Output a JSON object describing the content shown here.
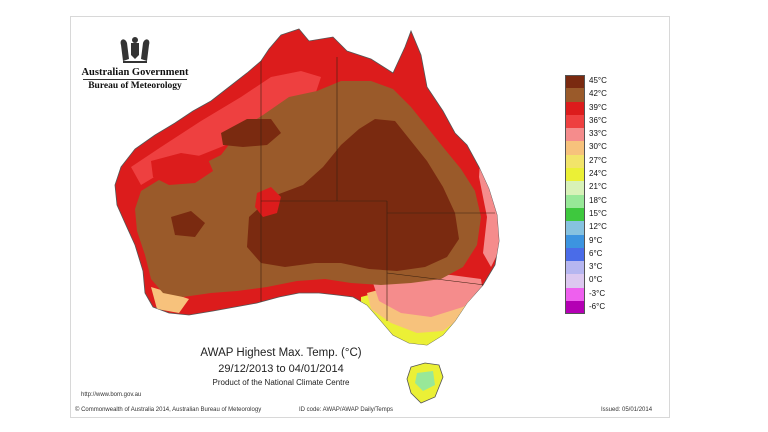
{
  "branding": {
    "government": "Australian Government",
    "bureau": "Bureau of Meteorology"
  },
  "map": {
    "title": "AWAP Highest Max. Temp. (°C)",
    "period": "29/12/2013 to 04/01/2014",
    "product": "Product of the National Climate Centre"
  },
  "legend": {
    "items": [
      {
        "label": "45°C",
        "color": "#7a2a10"
      },
      {
        "label": "42°C",
        "color": "#9a5a2a"
      },
      {
        "label": "39°C",
        "color": "#dc1c1c"
      },
      {
        "label": "36°C",
        "color": "#ee4040"
      },
      {
        "label": "33°C",
        "color": "#f58c8c"
      },
      {
        "label": "30°C",
        "color": "#f7c27c"
      },
      {
        "label": "27°C",
        "color": "#f2e46a"
      },
      {
        "label": "24°C",
        "color": "#ebf036"
      },
      {
        "label": "21°C",
        "color": "#d8f2b8"
      },
      {
        "label": "18°C",
        "color": "#98e898"
      },
      {
        "label": "15°C",
        "color": "#3ec83e"
      },
      {
        "label": "12°C",
        "color": "#86c2e0"
      },
      {
        "label": "9°C",
        "color": "#3c94e0"
      },
      {
        "label": "6°C",
        "color": "#4a6ce8"
      },
      {
        "label": "3°C",
        "color": "#b6b6f0"
      },
      {
        "label": "0°C",
        "color": "#dcc8f0"
      },
      {
        "label": "-3°C",
        "color": "#ee60ee"
      },
      {
        "label": "-6°C",
        "color": "#b400b4"
      }
    ]
  },
  "footer": {
    "url": "http://www.bom.gov.au",
    "copyright": "© Commonwealth of Australia 2014, Australian Bureau of Meteorology",
    "code": "ID code: AWAP/AWAP Daily/Temps",
    "issued": "Issued: 05/01/2014"
  }
}
